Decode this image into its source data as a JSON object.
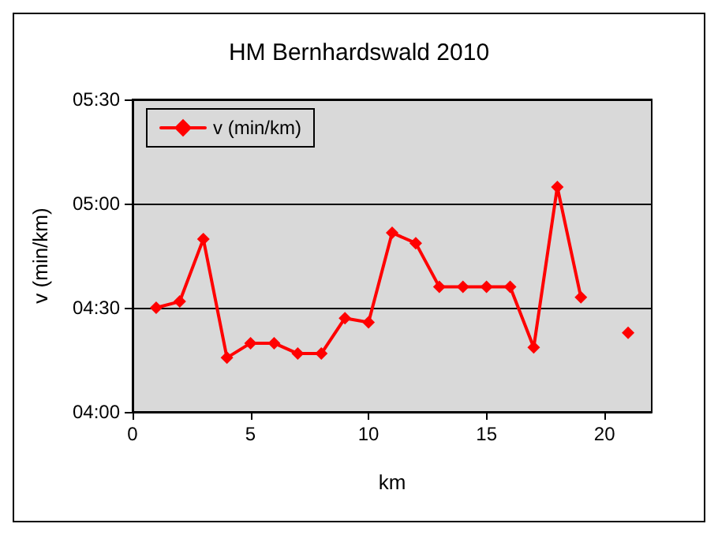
{
  "chart_data": {
    "type": "line",
    "title": "HM Bernhardswald 2010",
    "xlabel": "km",
    "ylabel": "v (min/km)",
    "x": [
      1,
      2,
      3,
      4,
      5,
      6,
      7,
      8,
      9,
      10,
      11,
      12,
      13,
      14,
      15,
      16,
      17,
      18,
      19,
      20,
      21
    ],
    "series": [
      {
        "name": "v (min/km)",
        "color": "#ff0000",
        "values": [
          4.5,
          4.53,
          4.83,
          4.26,
          4.33,
          4.33,
          4.28,
          4.28,
          4.45,
          4.43,
          4.86,
          4.81,
          4.6,
          4.6,
          4.6,
          4.6,
          4.31,
          5.08,
          4.55,
          null,
          4.38
        ]
      }
    ],
    "xlim": [
      0,
      22
    ],
    "xticks": [
      0,
      5,
      10,
      15,
      20
    ],
    "ylim": [
      4,
      5.5
    ],
    "yticks": [
      {
        "value": 4,
        "label": "04:00"
      },
      {
        "value": 4.5,
        "label": "04:30"
      },
      {
        "value": 5,
        "label": "05:00"
      },
      {
        "value": 5.5,
        "label": "05:30"
      }
    ],
    "grid": "y",
    "legend": "top left",
    "marker": "diamond",
    "line_style": "solid"
  }
}
